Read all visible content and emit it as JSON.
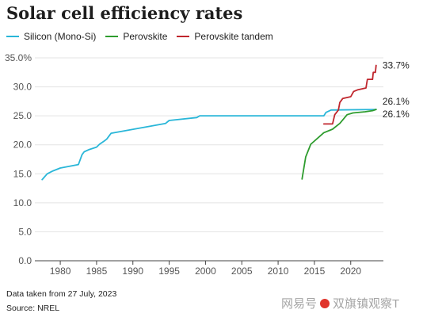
{
  "chart_data": {
    "type": "line",
    "title": "Solar cell efficiency rates",
    "xlabel": "",
    "ylabel": "",
    "xlim": [
      1976.5,
      2024.5
    ],
    "ylim": [
      0,
      35
    ],
    "x_ticks": [
      "1980",
      "1985",
      "1990",
      "1995",
      "2000",
      "2005",
      "2010",
      "2015",
      "2020"
    ],
    "x_tick_values": [
      1980,
      1985,
      1990,
      1995,
      2000,
      2005,
      2010,
      2015,
      2020
    ],
    "y_ticks": [
      "0.0",
      "5.0",
      "10.0",
      "15.0",
      "20.0",
      "25.0",
      "30.0",
      "35.0%"
    ],
    "y_tick_values": [
      0,
      5,
      10,
      15,
      20,
      25,
      30,
      35
    ],
    "grid": "horizontal",
    "legend": "top-left",
    "series": [
      {
        "name": "Silicon (Mono-Si)",
        "color": "#29b6d8",
        "points": [
          [
            1977.5,
            14.0
          ],
          [
            1978.2,
            15.0
          ],
          [
            1979,
            15.5
          ],
          [
            1980,
            16.0
          ],
          [
            1982.5,
            16.6
          ],
          [
            1983,
            18.3
          ],
          [
            1983.3,
            18.8
          ],
          [
            1984,
            19.2
          ],
          [
            1985,
            19.6
          ],
          [
            1985.4,
            20.1
          ],
          [
            1986,
            20.6
          ],
          [
            1986.4,
            21.0
          ],
          [
            1987,
            22.0
          ],
          [
            1994.5,
            23.7
          ],
          [
            1995,
            24.2
          ],
          [
            1998.8,
            24.7
          ],
          [
            1999.2,
            25.0
          ],
          [
            2016.3,
            25.0
          ],
          [
            2016.6,
            25.6
          ],
          [
            2017.3,
            26.0
          ],
          [
            2023.5,
            26.1
          ]
        ],
        "end_label": "26.1%"
      },
      {
        "name": "Perovskite",
        "color": "#2e9c2e",
        "points": [
          [
            2013.3,
            14.1
          ],
          [
            2013.8,
            17.9
          ],
          [
            2014.5,
            20.1
          ],
          [
            2016.3,
            22.1
          ],
          [
            2017.5,
            22.7
          ],
          [
            2018.5,
            23.7
          ],
          [
            2019.5,
            25.2
          ],
          [
            2020.3,
            25.5
          ],
          [
            2022,
            25.7
          ],
          [
            2023,
            25.9
          ],
          [
            2023.5,
            26.1
          ]
        ],
        "end_label": "26.1%"
      },
      {
        "name": "Perovskite tandem",
        "color": "#c0262d",
        "points": [
          [
            2016.3,
            23.6
          ],
          [
            2017.5,
            23.6
          ],
          [
            2017.8,
            25.2
          ],
          [
            2018.3,
            26.0
          ],
          [
            2018.5,
            27.3
          ],
          [
            2018.9,
            28.0
          ],
          [
            2020,
            28.3
          ],
          [
            2020.4,
            29.2
          ],
          [
            2021,
            29.5
          ],
          [
            2022.1,
            29.8
          ],
          [
            2022.3,
            31.3
          ],
          [
            2023,
            31.3
          ],
          [
            2023.1,
            32.5
          ],
          [
            2023.4,
            32.5
          ],
          [
            2023.5,
            33.7
          ]
        ],
        "end_label": "33.7%"
      }
    ]
  },
  "notes": {
    "date_note": "Data taken from 27 July, 2023",
    "source": "Source: NREL"
  },
  "watermark": {
    "left_text": "网易号",
    "right_text": "双旗镇观察T"
  }
}
